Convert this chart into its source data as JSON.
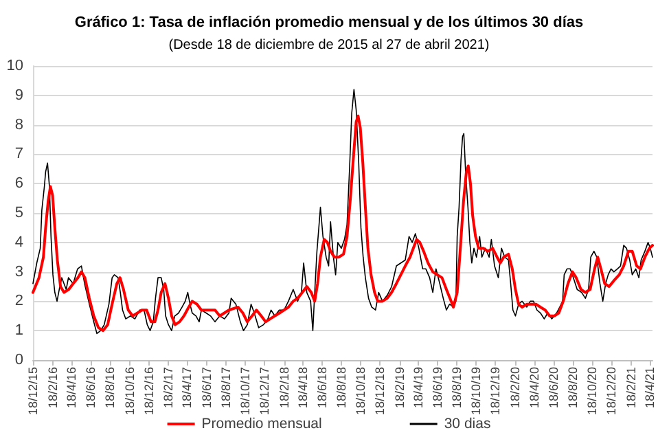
{
  "chart_data": {
    "type": "line",
    "title": "Gráfico 1: Tasa de inflación promedio mensual y de los últimos 30 días",
    "subtitle": "(Desde 18 de diciembre de 2015 al 27 de abril 2021)",
    "xlim": [
      "2015-12-18",
      "2021-04-27"
    ],
    "xticks": [
      {
        "value": "2015-12-18",
        "label": "18/12/15"
      },
      {
        "value": "2016-02-18",
        "label": "18/2/16"
      },
      {
        "value": "2016-04-18",
        "label": "18/4/16"
      },
      {
        "value": "2016-06-18",
        "label": "18/6/16"
      },
      {
        "value": "2016-08-18",
        "label": "18/8/16"
      },
      {
        "value": "2016-10-18",
        "label": "18/10/16"
      },
      {
        "value": "2016-12-18",
        "label": "18/12/16"
      },
      {
        "value": "2017-02-18",
        "label": "18/2/17"
      },
      {
        "value": "2017-04-18",
        "label": "18/4/17"
      },
      {
        "value": "2017-06-18",
        "label": "18/6/17"
      },
      {
        "value": "2017-08-18",
        "label": "18/8/17"
      },
      {
        "value": "2017-10-18",
        "label": "18/10/17"
      },
      {
        "value": "2017-12-18",
        "label": "18/12/17"
      },
      {
        "value": "2018-02-18",
        "label": "18/2/18"
      },
      {
        "value": "2018-04-18",
        "label": "18/4/18"
      },
      {
        "value": "2018-06-18",
        "label": "18/6/18"
      },
      {
        "value": "2018-08-18",
        "label": "18/8/18"
      },
      {
        "value": "2018-10-18",
        "label": "18/10/18"
      },
      {
        "value": "2018-12-18",
        "label": "18/12/18"
      },
      {
        "value": "2019-02-18",
        "label": "18/2/19"
      },
      {
        "value": "2019-04-18",
        "label": "18/4/19"
      },
      {
        "value": "2019-06-18",
        "label": "18/6/19"
      },
      {
        "value": "2019-08-18",
        "label": "18/8/19"
      },
      {
        "value": "2019-10-18",
        "label": "18/10/19"
      },
      {
        "value": "2019-12-18",
        "label": "18/12/19"
      },
      {
        "value": "2020-02-18",
        "label": "18/2/20"
      },
      {
        "value": "2020-04-18",
        "label": "18/4/20"
      },
      {
        "value": "2020-06-18",
        "label": "18/6/20"
      },
      {
        "value": "2020-08-18",
        "label": "18/8/20"
      },
      {
        "value": "2020-10-18",
        "label": "18/10/20"
      },
      {
        "value": "2020-12-18",
        "label": "18/12/20"
      },
      {
        "value": "2021-02-18",
        "label": "18/2/21"
      },
      {
        "value": "2021-04-18",
        "label": "18/4/21"
      }
    ],
    "ylim": [
      0,
      10
    ],
    "yticks": [
      0,
      1,
      2,
      3,
      4,
      5,
      6,
      7,
      8,
      9,
      10
    ],
    "grid": "y",
    "legend": "bottom",
    "series": [
      {
        "name": "Promedio mensual",
        "color": "#ff0000",
        "x": [
          "2015-12-18",
          "2016-01-06",
          "2016-01-20",
          "2016-01-27",
          "2016-02-04",
          "2016-02-11",
          "2016-02-18",
          "2016-02-25",
          "2016-03-04",
          "2016-03-14",
          "2016-03-25",
          "2016-04-09",
          "2016-04-23",
          "2016-05-08",
          "2016-05-19",
          "2016-05-30",
          "2016-06-13",
          "2016-06-27",
          "2016-07-12",
          "2016-07-26",
          "2016-08-10",
          "2016-08-24",
          "2016-09-08",
          "2016-09-18",
          "2016-09-29",
          "2016-10-14",
          "2016-10-28",
          "2016-11-12",
          "2016-11-26",
          "2016-12-11",
          "2016-12-25",
          "2017-01-06",
          "2017-01-16",
          "2017-01-26",
          "2017-02-07",
          "2017-02-18",
          "2017-02-28",
          "2017-03-11",
          "2017-03-25",
          "2017-04-08",
          "2017-04-23",
          "2017-05-04",
          "2017-05-19",
          "2017-06-02",
          "2017-06-17",
          "2017-07-01",
          "2017-07-15",
          "2017-07-30",
          "2017-08-28",
          "2017-09-26",
          "2017-10-11",
          "2017-10-25",
          "2017-11-09",
          "2017-11-23",
          "2017-12-08",
          "2017-12-22",
          "2018-01-05",
          "2018-01-20",
          "2018-02-04",
          "2018-02-18",
          "2018-03-04",
          "2018-03-19",
          "2018-04-02",
          "2018-04-17",
          "2018-05-01",
          "2018-05-15",
          "2018-05-26",
          "2018-06-04",
          "2018-06-13",
          "2018-06-25",
          "2018-07-05",
          "2018-07-15",
          "2018-07-27",
          "2018-08-10",
          "2018-08-25",
          "2018-09-05",
          "2018-09-15",
          "2018-09-26",
          "2018-10-04",
          "2018-10-10",
          "2018-10-17",
          "2018-10-25",
          "2018-11-02",
          "2018-11-10",
          "2018-11-20",
          "2018-12-01",
          "2018-12-11",
          "2018-12-26",
          "2019-01-10",
          "2019-01-24",
          "2019-02-08",
          "2019-02-22",
          "2019-03-08",
          "2019-03-23",
          "2019-04-06",
          "2019-04-13",
          "2019-04-23",
          "2019-05-05",
          "2019-05-19",
          "2019-06-03",
          "2019-06-17",
          "2019-07-02",
          "2019-07-16",
          "2019-07-31",
          "2019-08-07",
          "2019-08-19",
          "2019-08-29",
          "2019-09-08",
          "2019-09-17",
          "2019-09-23",
          "2019-09-30",
          "2019-10-07",
          "2019-10-16",
          "2019-10-26",
          "2019-11-10",
          "2019-11-24",
          "2019-12-09",
          "2019-12-23",
          "2020-01-02",
          "2020-01-13",
          "2020-01-28",
          "2020-02-09",
          "2020-02-19",
          "2020-02-29",
          "2020-03-11",
          "2020-03-26",
          "2020-04-10",
          "2020-04-24",
          "2020-05-08",
          "2020-05-23",
          "2020-06-06",
          "2020-06-21",
          "2020-07-05",
          "2020-07-19",
          "2020-08-03",
          "2020-08-17",
          "2020-08-29",
          "2020-09-13",
          "2020-09-27",
          "2020-10-12",
          "2020-10-26",
          "2020-11-05",
          "2020-11-15",
          "2020-11-27",
          "2020-12-11",
          "2020-12-26",
          "2021-01-12",
          "2021-01-26",
          "2021-02-10",
          "2021-02-22",
          "2021-03-08",
          "2021-03-20",
          "2021-04-03",
          "2021-04-17",
          "2021-04-27"
        ],
        "values": [
          2.3,
          2.8,
          3.5,
          4.5,
          5.4,
          5.9,
          5.6,
          4.5,
          3.4,
          2.5,
          2.3,
          2.4,
          2.6,
          2.8,
          3.0,
          2.8,
          2.1,
          1.5,
          1.1,
          1.0,
          1.2,
          1.9,
          2.6,
          2.8,
          2.4,
          1.7,
          1.5,
          1.6,
          1.7,
          1.7,
          1.3,
          1.3,
          1.7,
          2.3,
          2.6,
          2.1,
          1.5,
          1.2,
          1.3,
          1.5,
          1.8,
          2.0,
          1.9,
          1.7,
          1.7,
          1.7,
          1.7,
          1.5,
          1.7,
          1.8,
          1.6,
          1.3,
          1.5,
          1.7,
          1.5,
          1.3,
          1.4,
          1.5,
          1.6,
          1.7,
          1.8,
          2.0,
          2.1,
          2.3,
          2.5,
          2.3,
          2.0,
          2.6,
          3.5,
          4.1,
          4.0,
          3.7,
          3.5,
          3.5,
          3.6,
          4.2,
          5.4,
          7.0,
          8.1,
          8.3,
          7.9,
          6.7,
          5.2,
          3.8,
          2.9,
          2.3,
          2.0,
          2.0,
          2.1,
          2.3,
          2.6,
          2.9,
          3.2,
          3.5,
          3.9,
          4.1,
          4.0,
          3.7,
          3.3,
          3.0,
          2.9,
          2.8,
          2.4,
          2.0,
          1.8,
          2.3,
          3.8,
          5.4,
          6.4,
          6.6,
          6.0,
          4.9,
          4.2,
          3.8,
          3.8,
          3.7,
          3.8,
          3.5,
          3.3,
          3.5,
          3.6,
          3.1,
          2.4,
          1.9,
          1.8,
          1.9,
          1.9,
          1.9,
          1.8,
          1.7,
          1.5,
          1.5,
          1.6,
          2.0,
          2.6,
          3.0,
          2.8,
          2.4,
          2.3,
          2.4,
          3.1,
          3.5,
          3.1,
          2.6,
          2.5,
          2.7,
          2.9,
          3.2,
          3.7,
          3.7,
          3.2,
          3.1,
          3.5,
          3.8,
          3.9
        ]
      },
      {
        "name": "30 dias",
        "color": "#000000",
        "x": [
          "2015-12-18",
          "2015-12-30",
          "2016-01-10",
          "2016-01-15",
          "2016-01-23",
          "2016-01-27",
          "2016-02-02",
          "2016-02-08",
          "2016-02-13",
          "2016-02-19",
          "2016-02-25",
          "2016-03-03",
          "2016-03-10",
          "2016-03-18",
          "2016-03-25",
          "2016-04-01",
          "2016-04-08",
          "2016-04-23",
          "2016-05-07",
          "2016-05-19",
          "2016-05-29",
          "2016-06-13",
          "2016-06-27",
          "2016-07-07",
          "2016-07-19",
          "2016-07-30",
          "2016-08-14",
          "2016-08-24",
          "2016-08-31",
          "2016-09-12",
          "2016-09-19",
          "2016-09-26",
          "2016-10-06",
          "2016-10-21",
          "2016-11-04",
          "2016-11-19",
          "2016-12-03",
          "2016-12-13",
          "2016-12-22",
          "2017-01-01",
          "2017-01-08",
          "2017-01-16",
          "2017-01-26",
          "2017-02-03",
          "2017-02-09",
          "2017-02-18",
          "2017-02-28",
          "2017-03-10",
          "2017-03-22",
          "2017-04-02",
          "2017-04-12",
          "2017-04-20",
          "2017-04-27",
          "2017-05-04",
          "2017-05-16",
          "2017-05-26",
          "2017-06-02",
          "2017-06-17",
          "2017-07-01",
          "2017-07-15",
          "2017-07-30",
          "2017-08-14",
          "2017-08-28",
          "2017-09-04",
          "2017-09-19",
          "2017-10-03",
          "2017-10-13",
          "2017-10-25",
          "2017-11-06",
          "2017-11-16",
          "2017-11-30",
          "2017-12-15",
          "2017-12-29",
          "2018-01-08",
          "2018-01-20",
          "2018-02-03",
          "2018-02-18",
          "2018-03-04",
          "2018-03-19",
          "2018-04-02",
          "2018-04-14",
          "2018-04-21",
          "2018-05-01",
          "2018-05-13",
          "2018-05-20",
          "2018-05-26",
          "2018-06-02",
          "2018-06-08",
          "2018-06-13",
          "2018-06-21",
          "2018-07-01",
          "2018-07-09",
          "2018-07-15",
          "2018-07-24",
          "2018-07-31",
          "2018-08-07",
          "2018-08-18",
          "2018-08-28",
          "2018-09-05",
          "2018-09-13",
          "2018-09-20",
          "2018-09-27",
          "2018-10-04",
          "2018-10-12",
          "2018-10-19",
          "2018-10-26",
          "2018-11-02",
          "2018-11-12",
          "2018-11-22",
          "2018-12-04",
          "2018-12-14",
          "2018-12-26",
          "2019-01-10",
          "2019-01-24",
          "2019-02-08",
          "2019-02-22",
          "2019-03-08",
          "2019-03-20",
          "2019-03-30",
          "2019-04-09",
          "2019-04-20",
          "2019-05-02",
          "2019-05-12",
          "2019-05-24",
          "2019-06-03",
          "2019-06-13",
          "2019-06-25",
          "2019-07-06",
          "2019-07-16",
          "2019-07-26",
          "2019-08-07",
          "2019-08-15",
          "2019-08-19",
          "2019-08-25",
          "2019-08-31",
          "2019-09-05",
          "2019-09-09",
          "2019-09-15",
          "2019-09-22",
          "2019-09-28",
          "2019-10-04",
          "2019-10-11",
          "2019-10-19",
          "2019-10-29",
          "2019-11-05",
          "2019-11-16",
          "2019-11-28",
          "2019-12-05",
          "2019-12-15",
          "2019-12-27",
          "2020-01-06",
          "2020-01-16",
          "2020-01-28",
          "2020-02-04",
          "2020-02-11",
          "2020-02-19",
          "2020-02-29",
          "2020-03-11",
          "2020-03-26",
          "2020-04-06",
          "2020-04-16",
          "2020-04-27",
          "2020-05-08",
          "2020-05-20",
          "2020-05-31",
          "2020-06-13",
          "2020-06-28",
          "2020-07-08",
          "2020-07-17",
          "2020-07-22",
          "2020-07-31",
          "2020-08-10",
          "2020-08-20",
          "2020-09-01",
          "2020-09-15",
          "2020-09-27",
          "2020-10-07",
          "2020-10-14",
          "2020-10-24",
          "2020-11-02",
          "2020-11-12",
          "2020-11-21",
          "2020-11-30",
          "2020-12-08",
          "2020-12-17",
          "2020-12-26",
          "2021-01-06",
          "2021-01-16",
          "2021-01-26",
          "2021-02-04",
          "2021-02-14",
          "2021-02-22",
          "2021-03-05",
          "2021-03-15",
          "2021-03-22",
          "2021-04-03",
          "2021-04-13",
          "2021-04-20",
          "2021-04-27"
        ],
        "values": [
          2.6,
          3.3,
          3.8,
          5.1,
          5.9,
          6.4,
          6.7,
          5.9,
          4.2,
          2.9,
          2.3,
          2.0,
          2.4,
          2.8,
          2.6,
          2.4,
          2.8,
          2.6,
          3.1,
          3.2,
          2.6,
          1.9,
          1.3,
          0.9,
          1.0,
          1.2,
          1.9,
          2.8,
          2.9,
          2.8,
          2.3,
          1.7,
          1.4,
          1.5,
          1.4,
          1.7,
          1.7,
          1.2,
          1.0,
          1.3,
          2.1,
          2.8,
          2.8,
          2.4,
          1.5,
          1.2,
          1.0,
          1.5,
          1.6,
          1.8,
          2.0,
          2.3,
          1.9,
          1.6,
          1.5,
          1.3,
          1.7,
          1.6,
          1.5,
          1.3,
          1.5,
          1.4,
          1.6,
          2.1,
          1.9,
          1.3,
          1.0,
          1.2,
          1.9,
          1.6,
          1.1,
          1.2,
          1.4,
          1.7,
          1.5,
          1.7,
          1.7,
          2.0,
          2.4,
          2.0,
          2.3,
          3.3,
          2.3,
          2.0,
          1.0,
          2.3,
          3.7,
          4.5,
          5.2,
          4.2,
          3.5,
          3.2,
          4.7,
          3.5,
          2.9,
          4.0,
          3.8,
          4.1,
          4.6,
          6.5,
          8.4,
          9.2,
          8.5,
          6.7,
          4.5,
          3.5,
          2.8,
          2.1,
          1.8,
          1.7,
          2.3,
          2.0,
          2.2,
          2.5,
          3.2,
          3.3,
          3.4,
          4.2,
          4.0,
          4.3,
          3.8,
          3.1,
          3.1,
          2.8,
          2.3,
          3.1,
          2.6,
          2.1,
          1.7,
          1.9,
          1.8,
          2.0,
          4.2,
          5.2,
          6.8,
          7.6,
          7.7,
          6.3,
          5.2,
          4.0,
          3.3,
          3.8,
          3.5,
          4.2,
          3.5,
          3.8,
          3.5,
          4.1,
          3.2,
          2.8,
          3.8,
          3.5,
          3.4,
          2.6,
          1.7,
          1.5,
          1.9,
          2.0,
          1.8,
          2.0,
          2.0,
          1.7,
          1.6,
          1.4,
          1.6,
          1.4,
          1.6,
          1.8,
          2.0,
          2.9,
          3.1,
          3.1,
          2.8,
          2.4,
          2.3,
          2.1,
          2.4,
          3.5,
          3.7,
          3.5,
          2.6,
          2.0,
          2.6,
          2.9,
          3.1,
          3.0,
          3.1,
          3.2,
          3.9,
          3.8,
          3.4,
          2.9,
          3.1,
          2.8,
          3.4,
          3.7,
          4.0,
          3.8,
          3.5
        ]
      }
    ]
  }
}
